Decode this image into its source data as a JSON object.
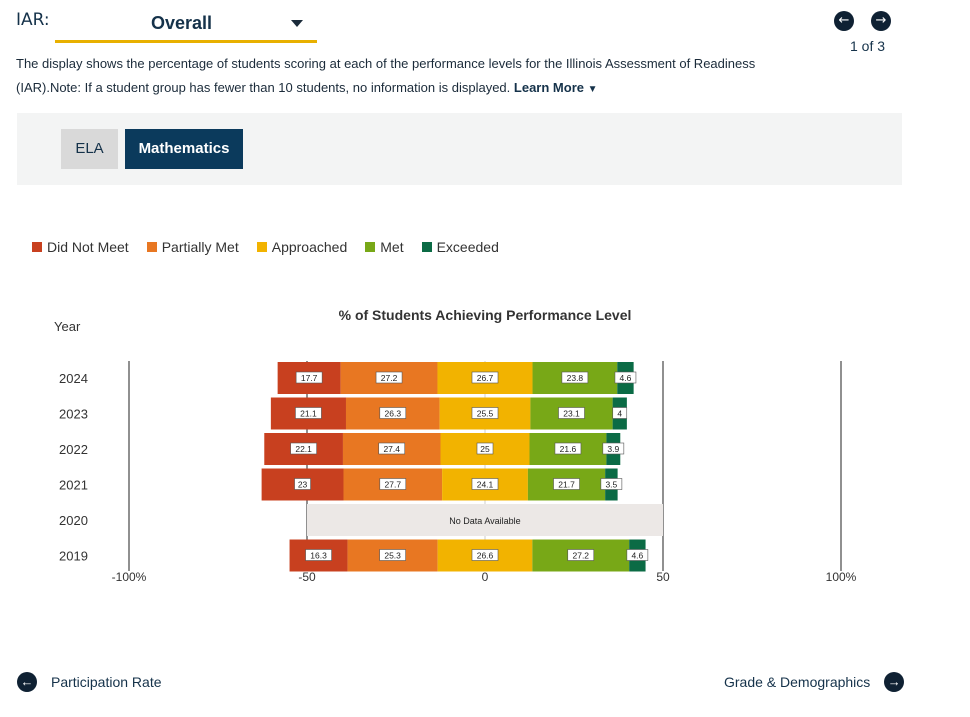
{
  "header": {
    "label": "IAR:",
    "selected": "Overall",
    "pager": "1 of 3"
  },
  "description": {
    "text": "The display shows the percentage of students scoring at each of the performance levels for the Illinois Assessment of Readiness (IAR).Note: If a student group has fewer than 10 students, no information is displayed.",
    "learn_more": "Learn More"
  },
  "tabs": [
    {
      "label": "ELA",
      "active": false
    },
    {
      "label": "Mathematics",
      "active": true
    }
  ],
  "legend": [
    {
      "label": "Did Not Meet",
      "color": "#c8401f"
    },
    {
      "label": "Partially Met",
      "color": "#e87722"
    },
    {
      "label": "Approached",
      "color": "#f2b300"
    },
    {
      "label": "Met",
      "color": "#78a817"
    },
    {
      "label": "Exceeded",
      "color": "#0b6b45"
    }
  ],
  "chart_data": {
    "type": "bar",
    "orientation": "horizontal-diverging",
    "title": "% of Students Achieving Performance Level",
    "ylabel": "Year",
    "categories": [
      "2024",
      "2023",
      "2022",
      "2021",
      "2020",
      "2019"
    ],
    "xlim": [
      -100,
      100
    ],
    "x_ticks": [
      -100,
      -50,
      0,
      50,
      100
    ],
    "x_tick_labels": [
      "-100%",
      "-50",
      "0",
      "50",
      "100%"
    ],
    "no_data_text": "No Data Available",
    "series": [
      {
        "name": "Did Not Meet",
        "color": "#c8401f",
        "values": [
          17.7,
          21.1,
          22.1,
          23,
          null,
          16.3
        ]
      },
      {
        "name": "Partially Met",
        "color": "#e87722",
        "values": [
          27.2,
          26.3,
          27.4,
          27.7,
          null,
          25.3
        ]
      },
      {
        "name": "Approached",
        "color": "#f2b300",
        "values": [
          26.7,
          25.5,
          25,
          24.1,
          null,
          26.6
        ]
      },
      {
        "name": "Met",
        "color": "#78a817",
        "values": [
          23.8,
          23.1,
          21.6,
          21.7,
          null,
          27.2
        ]
      },
      {
        "name": "Exceeded",
        "color": "#0b6b45",
        "values": [
          4.6,
          4,
          3.9,
          3.5,
          null,
          4.6
        ]
      }
    ]
  },
  "footer": {
    "prev_label": "Participation Rate",
    "next_label": "Grade & Demographics"
  }
}
